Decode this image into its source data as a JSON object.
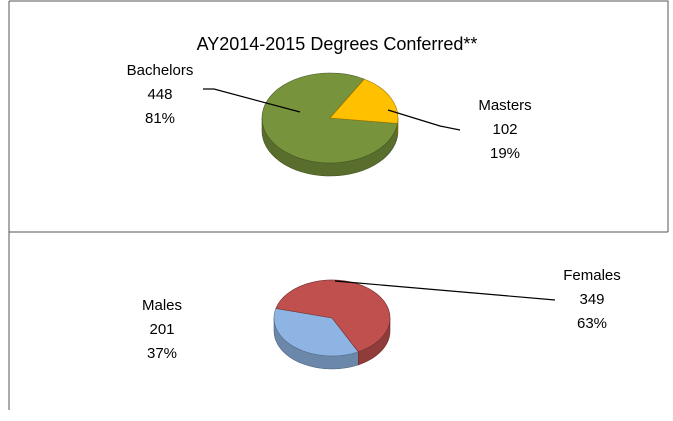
{
  "chart_data": [
    {
      "type": "pie",
      "title": "AY2014-2015 Degrees Conferred**",
      "categories": [
        "Bachelors",
        "Masters"
      ],
      "values": [
        448,
        102
      ],
      "percent_labels": [
        "81%",
        "19%"
      ],
      "colors": [
        "#77933c",
        "#ffc000"
      ]
    },
    {
      "type": "pie",
      "categories": [
        "Males",
        "Females"
      ],
      "values": [
        201,
        349
      ],
      "percent_labels": [
        "37%",
        "63%"
      ],
      "colors": [
        "#8eb4e3",
        "#c0504d"
      ]
    }
  ]
}
